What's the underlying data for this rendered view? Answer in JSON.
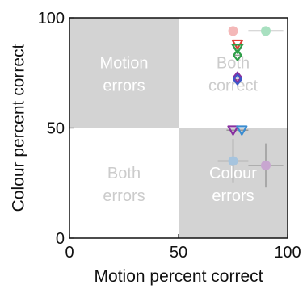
{
  "chart_data": {
    "type": "scatter",
    "xlabel": "Motion percent correct",
    "ylabel": "Colour percent correct",
    "xlim": [
      0,
      100
    ],
    "ylim": [
      0,
      100
    ],
    "x_ticks": [
      {
        "value": 0,
        "label": "0"
      },
      {
        "value": 50,
        "label": "50"
      },
      {
        "value": 100,
        "label": "100"
      }
    ],
    "y_ticks": [
      {
        "value": 0,
        "label": "0"
      },
      {
        "value": 50,
        "label": "50"
      },
      {
        "value": 100,
        "label": "100"
      }
    ],
    "grid": false,
    "quadrants": [
      {
        "id": "top-left",
        "lines": [
          "Motion",
          "errors"
        ],
        "x_range": [
          0,
          50
        ],
        "y_range": [
          50,
          100
        ],
        "fill": "#d3d3d3",
        "text_color": "#ffffff"
      },
      {
        "id": "top-right",
        "lines": [
          "Both",
          "correct"
        ],
        "x_range": [
          50,
          100
        ],
        "y_range": [
          50,
          100
        ],
        "fill": "#ffffff",
        "text_color": "#cccccc"
      },
      {
        "id": "bottom-left",
        "lines": [
          "Both",
          "errors"
        ],
        "x_range": [
          0,
          50
        ],
        "y_range": [
          0,
          50
        ],
        "fill": "#ffffff",
        "text_color": "#cccccc"
      },
      {
        "id": "bottom-right",
        "lines": [
          "Colour",
          "errors"
        ],
        "x_range": [
          50,
          100
        ],
        "y_range": [
          0,
          50
        ],
        "fill": "#d3d3d3",
        "text_color": "#ffffff"
      }
    ],
    "points": [
      {
        "x": 75,
        "y": 94,
        "marker": "circle",
        "color": "#f4b8b8",
        "xerr": 2,
        "yerr": 0
      },
      {
        "x": 90,
        "y": 94,
        "marker": "circle",
        "color": "#a8e0c0",
        "xerr": 8,
        "yerr": 0
      },
      {
        "x": 77,
        "y": 88,
        "marker": "triangle-down",
        "color": "#e0403a",
        "xerr": 3,
        "yerr": 0
      },
      {
        "x": 77,
        "y": 86,
        "marker": "triangle-down",
        "color": "#2e9e48",
        "xerr": 2,
        "yerr": 0
      },
      {
        "x": 77,
        "y": 83,
        "marker": "diamond",
        "color": "#2e9e48",
        "xerr": 2,
        "yerr": 0
      },
      {
        "x": 77,
        "y": 73,
        "marker": "diamond",
        "color": "#8830a0",
        "xerr": 2,
        "yerr": 0
      },
      {
        "x": 77,
        "y": 72,
        "marker": "diamond",
        "color": "#3c58c8",
        "xerr": 2,
        "yerr": 0
      },
      {
        "x": 75,
        "y": 49,
        "marker": "triangle-down",
        "color": "#8830a0",
        "xerr": 3,
        "yerr": 0
      },
      {
        "x": 79,
        "y": 49,
        "marker": "triangle-down",
        "color": "#3a8cd0",
        "xerr": 3,
        "yerr": 0
      },
      {
        "x": 75,
        "y": 35,
        "marker": "circle",
        "color": "#a6c4de",
        "xerr": 7,
        "yerr": 10
      },
      {
        "x": 90,
        "y": 33,
        "marker": "circle",
        "color": "#c8a6d0",
        "xerr": 8,
        "yerr": 10
      }
    ]
  }
}
